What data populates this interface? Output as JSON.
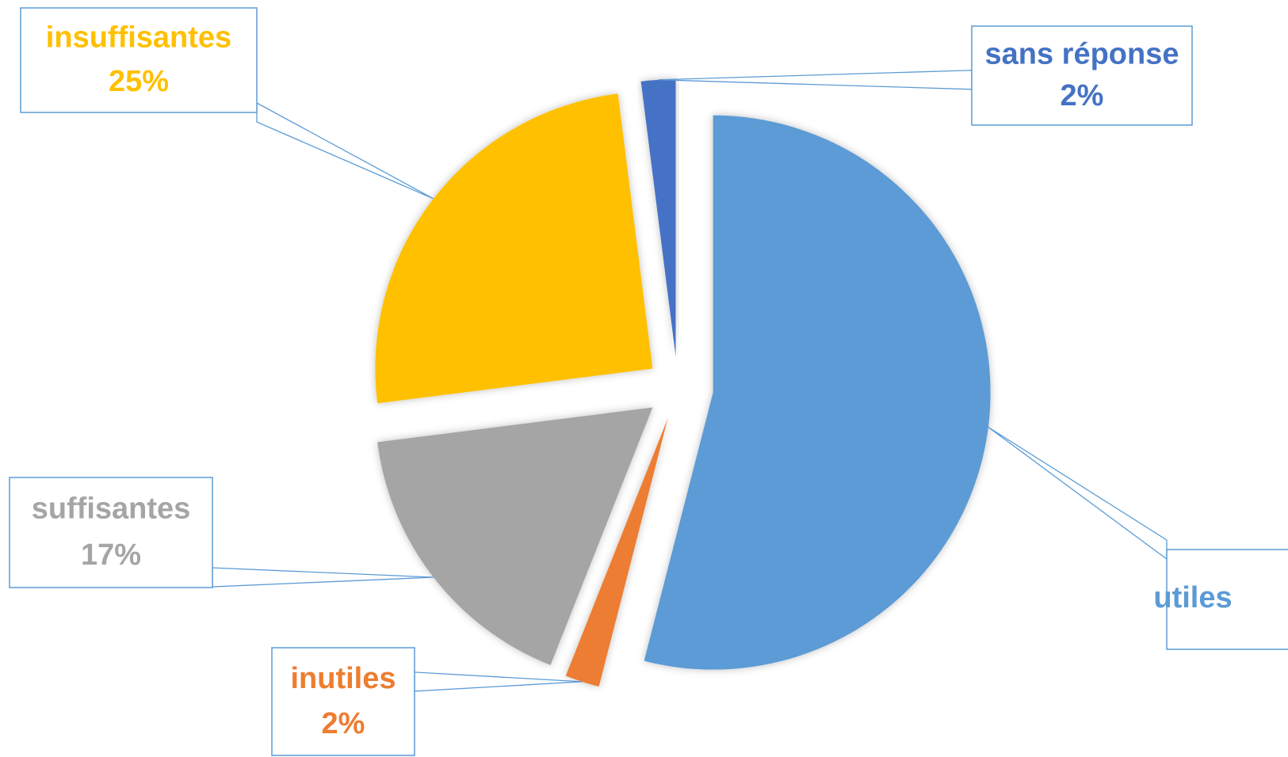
{
  "chart_data": {
    "type": "pie",
    "categories": [
      "utiles",
      "inutiles",
      "suffisantes",
      "insuffisantes",
      "sans réponse"
    ],
    "values": [
      54,
      2,
      17,
      25,
      2
    ],
    "value_labels": [
      null,
      "2%",
      "17%",
      "25%",
      "2%"
    ],
    "colors": [
      "#5b9bd5",
      "#ed7d31",
      "#a5a5a5",
      "#ffc000",
      "#4472c4"
    ],
    "start_angle": 0,
    "direction": "clockwise",
    "exploded": true
  }
}
